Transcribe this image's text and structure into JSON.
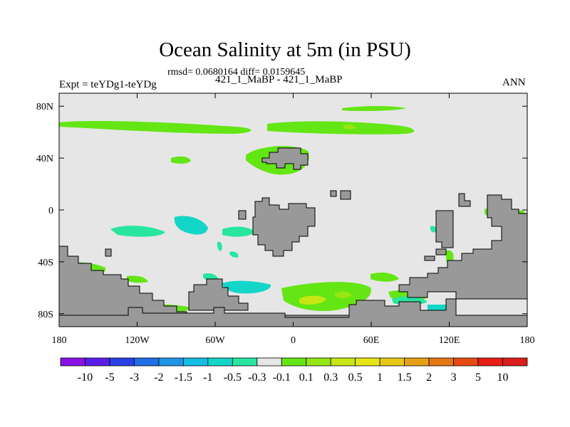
{
  "title": "Ocean Salinity at 5m (in PSU)",
  "stats_line": "rmsd= 0.0680164 diff= 0.0159645",
  "experiment_label": "Expt = teYDg1-teYDg",
  "cases_label": "421_1_MaBP - 421_1_MaBP",
  "season_label": "ANN",
  "map": {
    "projection": "cylindrical equidistant",
    "lon_range": [
      -180,
      180
    ],
    "lat_range": [
      -90,
      90
    ],
    "x_ticks": [
      {
        "lon": -180,
        "label": "180"
      },
      {
        "lon": -120,
        "label": "120W"
      },
      {
        "lon": -60,
        "label": "60W"
      },
      {
        "lon": 0,
        "label": "0"
      },
      {
        "lon": 60,
        "label": "60E"
      },
      {
        "lon": 120,
        "label": "120E"
      },
      {
        "lon": 180,
        "label": "180"
      }
    ],
    "y_ticks": [
      {
        "lat": 80,
        "label": "80N"
      },
      {
        "lat": 40,
        "label": "40N"
      },
      {
        "lat": 0,
        "label": "0"
      },
      {
        "lat": -40,
        "label": "40S"
      },
      {
        "lat": -80,
        "label": "80S"
      }
    ],
    "colors": {
      "ocean_background": "#e6e6e6",
      "land": "#999999",
      "land_outline": "#000000"
    }
  },
  "colorbar": {
    "levels": [
      "-10",
      "-5",
      "-3",
      "-2",
      "-1.5",
      "-1",
      "-0.5",
      "-0.3",
      "-0.1",
      "0.1",
      "0.3",
      "0.5",
      "1",
      "1.5",
      "2",
      "3",
      "5",
      "10"
    ],
    "colors": [
      "#8a12e6",
      "#5a1ee6",
      "#2a40e6",
      "#1e6ee6",
      "#1e96e6",
      "#14bde6",
      "#14d6c8",
      "#28e6a0",
      "#e6e6e6",
      "#64e614",
      "#96e614",
      "#c8e614",
      "#e6e614",
      "#e6c814",
      "#e6a014",
      "#e67814",
      "#e64b14",
      "#e61e14",
      "#dc1e1e"
    ]
  }
}
